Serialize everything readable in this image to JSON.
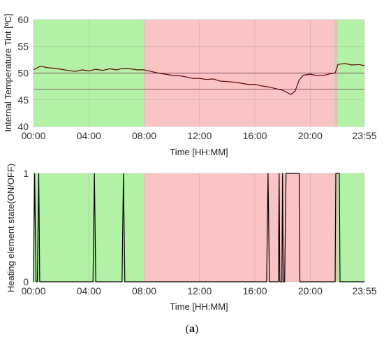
{
  "chart_data": [
    {
      "type": "line",
      "panel": "top",
      "title": "",
      "xlabel": "Time [HH:MM]",
      "ylabel": "Internal Temperature Tint [ºC]",
      "ylim": [
        40,
        60
      ],
      "yticks": [
        40,
        45,
        50,
        55,
        60
      ],
      "xlim": [
        0,
        23.917
      ],
      "xticks": [
        {
          "value": 0,
          "label": "00:00"
        },
        {
          "value": 4,
          "label": "04:00"
        },
        {
          "value": 8,
          "label": "08:00"
        },
        {
          "value": 12,
          "label": "12:00"
        },
        {
          "value": 16,
          "label": "16:00"
        },
        {
          "value": 20,
          "label": "20:00"
        },
        {
          "value": 23.917,
          "label": "23:55"
        }
      ],
      "grid": true,
      "background_bands": [
        {
          "from": 0,
          "to": 8,
          "color": "#b3f2a6"
        },
        {
          "from": 8,
          "to": 21.75,
          "color": "#fbc4c4"
        },
        {
          "from": 21.75,
          "to": 22,
          "color": "#d9c9b0"
        },
        {
          "from": 22,
          "to": 23.917,
          "color": "#b3f2a6"
        }
      ],
      "reference_lines": [
        50,
        47
      ],
      "reference_line_color": "#7a4a5a",
      "series": [
        {
          "color": "#5a0000",
          "x": [
            0,
            0.5,
            1,
            1.5,
            2,
            2.5,
            3,
            3.5,
            4,
            4.5,
            5,
            5.5,
            6,
            6.5,
            7,
            7.5,
            8,
            8.5,
            9,
            9.5,
            10,
            10.5,
            11,
            11.5,
            12,
            12.5,
            13,
            13.5,
            14,
            14.5,
            15,
            15.5,
            16,
            16.5,
            17,
            17.5,
            18,
            18.3,
            18.6,
            18.9,
            19.2,
            19.5,
            20,
            20.5,
            21,
            21.5,
            21.8,
            22,
            22.5,
            23,
            23.5,
            23.917
          ],
          "y": [
            50.6,
            51.3,
            51.0,
            50.9,
            50.7,
            50.5,
            50.3,
            50.6,
            50.4,
            50.7,
            50.5,
            50.8,
            50.6,
            50.9,
            50.8,
            50.6,
            50.6,
            50.3,
            50.0,
            49.8,
            49.6,
            49.5,
            49.3,
            49.0,
            49.0,
            48.8,
            48.9,
            48.5,
            48.4,
            48.3,
            48.1,
            47.9,
            47.9,
            47.6,
            47.4,
            47.1,
            46.8,
            46.4,
            46.0,
            46.6,
            48.7,
            49.6,
            49.8,
            49.5,
            49.6,
            49.9,
            50.0,
            51.6,
            51.8,
            51.5,
            51.6,
            51.4
          ]
        }
      ]
    },
    {
      "type": "line",
      "panel": "bottom",
      "title": "",
      "xlabel": "Time [HH:MM]",
      "ylabel": "Heating element state(ON/OFF)",
      "ylim": [
        0,
        1
      ],
      "yticks": [
        0,
        1
      ],
      "xlim": [
        0,
        23.917
      ],
      "xticks": [
        {
          "value": 0,
          "label": "00:00"
        },
        {
          "value": 4,
          "label": "04:00"
        },
        {
          "value": 8,
          "label": "08:00"
        },
        {
          "value": 12,
          "label": "12:00"
        },
        {
          "value": 16,
          "label": "16:00"
        },
        {
          "value": 20,
          "label": "20:00"
        },
        {
          "value": 23.917,
          "label": "23:55"
        }
      ],
      "grid": true,
      "background_bands": [
        {
          "from": 0,
          "to": 8,
          "color": "#b3f2a6"
        },
        {
          "from": 8,
          "to": 21.75,
          "color": "#fbc4c4"
        },
        {
          "from": 21.75,
          "to": 22,
          "color": "#d9c9b0"
        },
        {
          "from": 22,
          "to": 23.917,
          "color": "#b3f2a6"
        }
      ],
      "series": [
        {
          "color": "#000000",
          "x": [
            0,
            0.08,
            0.18,
            0.28,
            0.38,
            0.45,
            0.5,
            4.3,
            4.4,
            4.5,
            6.4,
            6.5,
            6.6,
            16.85,
            16.95,
            17.05,
            17.7,
            17.75,
            17.8,
            17.95,
            18.0,
            18.05,
            18.15,
            18.25,
            18.35,
            18.45,
            19.2,
            19.25,
            21.8,
            21.85,
            22.1,
            22.15,
            23.917
          ],
          "y": [
            0,
            1,
            0,
            0,
            1,
            0,
            0,
            0,
            1,
            0,
            0,
            1,
            0,
            0,
            1,
            0,
            0,
            1,
            0,
            0,
            1,
            0,
            0,
            1,
            1,
            1,
            1,
            0,
            0,
            1,
            1,
            0,
            0
          ]
        }
      ]
    }
  ],
  "caption": {
    "open": "(",
    "letter": "a",
    "close": ")"
  }
}
